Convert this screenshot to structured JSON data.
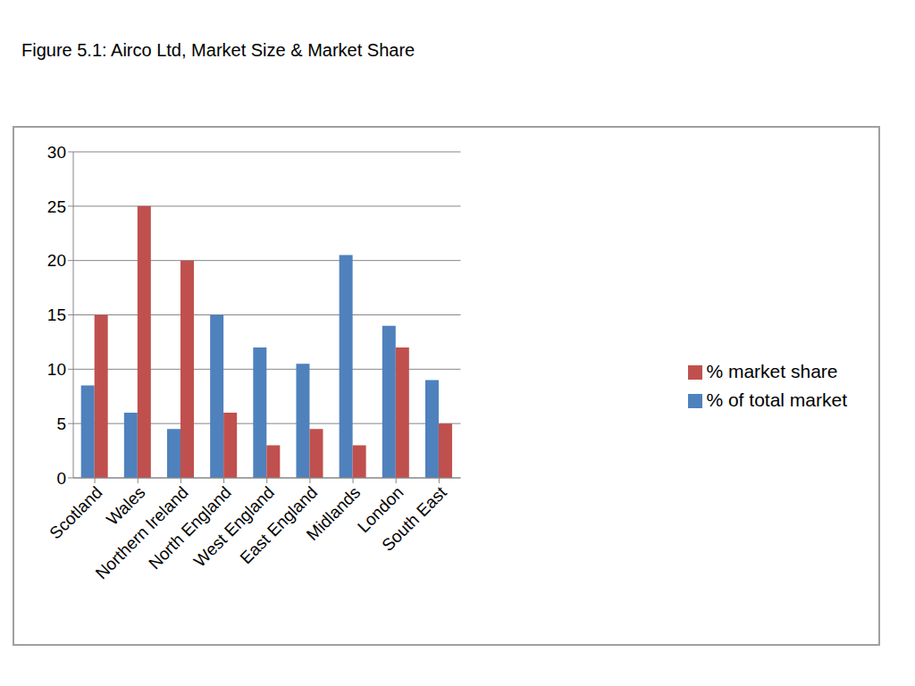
{
  "chart_data": {
    "type": "bar",
    "title": "Figure 5.1: Airco Ltd, Market Size & Market Share",
    "categories": [
      "Scotland",
      "Wales",
      "Northern Ireland",
      "North England",
      "West England",
      "East England",
      "Midlands",
      "London",
      "South East"
    ],
    "series": [
      {
        "name": "% of total market",
        "color": "#4f81bd",
        "values": [
          8.5,
          6,
          4.5,
          15,
          12,
          10.5,
          20.5,
          14,
          9
        ]
      },
      {
        "name": "% market share",
        "color": "#c0504d",
        "values": [
          15,
          25,
          20,
          6,
          3,
          4.5,
          3,
          12,
          5
        ]
      }
    ],
    "ylim": [
      0,
      30
    ],
    "yticks": [
      0,
      5,
      10,
      15,
      20,
      25,
      30
    ],
    "grid": true,
    "legend": "right"
  }
}
